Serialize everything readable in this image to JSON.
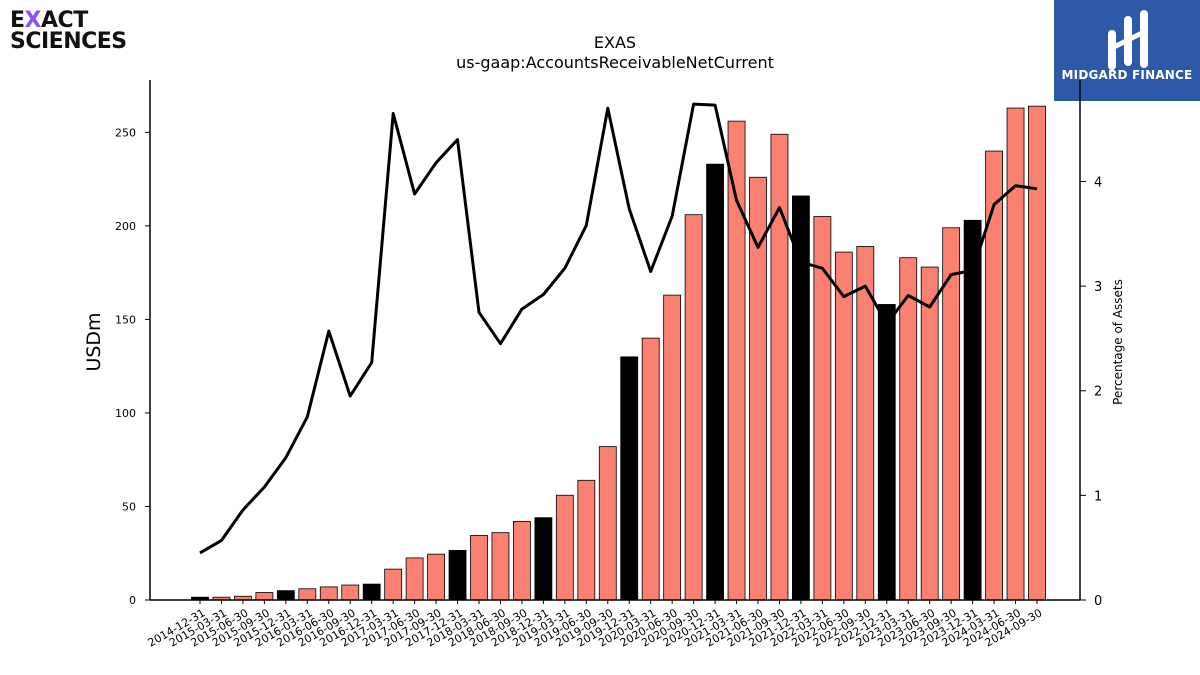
{
  "logo_left": {
    "line1": "EXACT",
    "line2": "SCIENCES"
  },
  "logo_right": {
    "name": "MIDGARD FINANCE"
  },
  "colors": {
    "bar_default": "#fa8072",
    "bar_highlight": "#000000",
    "line": "#000000",
    "brand": "#2c5aa8",
    "logo_x_accent": "#8a4fff"
  },
  "chart_data": {
    "type": "bar",
    "title": "EXAS",
    "subtitle": "us-gaap:AccountsReceivableNetCurrent",
    "ylabel": "USDm",
    "y2label": "Percentage of Assets",
    "ylim": [
      0,
      278
    ],
    "y2lim": [
      0,
      4.97
    ],
    "yticks": [
      0,
      50,
      100,
      150,
      200,
      250
    ],
    "y2ticks": [
      0,
      1,
      2,
      3,
      4
    ],
    "categories": [
      "2014-12-31",
      "2015-03-31",
      "2015-06-30",
      "2015-09-30",
      "2015-12-31",
      "2016-03-31",
      "2016-06-30",
      "2016-09-30",
      "2016-12-31",
      "2017-03-31",
      "2017-06-30",
      "2017-09-30",
      "2017-12-31",
      "2018-03-31",
      "2018-06-30",
      "2018-09-30",
      "2018-12-31",
      "2019-03-31",
      "2019-06-30",
      "2019-09-30",
      "2019-12-31",
      "2020-03-31",
      "2020-06-30",
      "2020-09-30",
      "2020-12-31",
      "2021-03-31",
      "2021-06-30",
      "2021-09-30",
      "2021-12-31",
      "2022-03-31",
      "2022-06-30",
      "2022-09-30",
      "2022-12-31",
      "2023-03-31",
      "2023-06-30",
      "2023-09-30",
      "2023-12-31",
      "2024-03-31",
      "2024-06-30",
      "2024-09-30"
    ],
    "series": [
      {
        "axis": "left",
        "kind": "bar",
        "values": [
          1.5,
          1.5,
          2,
          4,
          5,
          6,
          7,
          8,
          8.5,
          16.5,
          22.5,
          24.5,
          26.5,
          34.5,
          36,
          42,
          44,
          56,
          64,
          82,
          130,
          140,
          163,
          206,
          233,
          256,
          226,
          249,
          216,
          205,
          186,
          189,
          158,
          183,
          178,
          199,
          203,
          240,
          263,
          264
        ]
      },
      {
        "axis": "right",
        "kind": "line",
        "values": [
          0.45,
          0.57,
          0.86,
          1.08,
          1.36,
          1.75,
          2.57,
          1.95,
          2.27,
          4.65,
          3.88,
          4.18,
          4.4,
          2.75,
          2.45,
          2.78,
          2.92,
          3.17,
          3.58,
          4.7,
          3.74,
          3.14,
          3.67,
          4.74,
          4.73,
          3.82,
          3.37,
          3.75,
          3.23,
          3.17,
          2.9,
          3.0,
          2.64,
          2.91,
          2.8,
          3.11,
          3.15,
          3.78,
          3.96,
          3.93
        ]
      }
    ],
    "highlight_categories": [
      "2014-12-31",
      "2015-12-31",
      "2016-12-31",
      "2017-12-31",
      "2018-12-31",
      "2019-12-31",
      "2020-12-31",
      "2021-12-31",
      "2022-12-31",
      "2023-12-31"
    ],
    "grid": false,
    "legend": "none"
  }
}
